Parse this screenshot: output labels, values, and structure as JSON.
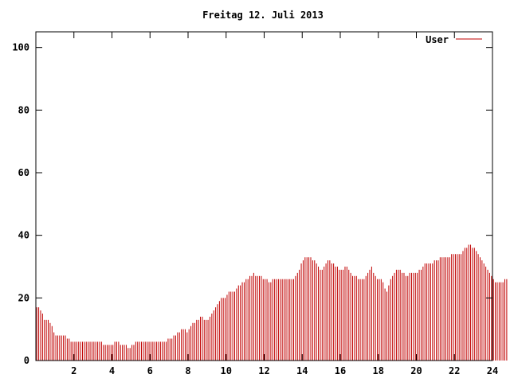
{
  "chart_data": {
    "type": "bar",
    "title": "Freitag 12. Juli 2013",
    "xlabel": "",
    "ylabel": "",
    "xlim": [
      0,
      24
    ],
    "ylim": [
      0,
      105
    ],
    "grid": false,
    "legend_position": "top-right",
    "x_ticks": [
      2,
      4,
      6,
      8,
      10,
      12,
      14,
      16,
      18,
      20,
      22,
      24
    ],
    "y_ticks": [
      0,
      20,
      40,
      60,
      80,
      100
    ],
    "bar_step_hours": 0.1,
    "series": [
      {
        "name": "User",
        "color": "#c00000",
        "values": [
          17,
          17,
          16,
          15,
          13,
          13,
          13,
          12,
          11,
          9,
          8,
          8,
          8,
          8,
          8,
          8,
          7,
          7,
          6,
          6,
          6,
          6,
          6,
          6,
          6,
          6,
          6,
          6,
          6,
          6,
          6,
          6,
          6,
          6,
          6,
          5,
          5,
          5,
          5,
          5,
          5,
          6,
          6,
          6,
          5,
          5,
          5,
          5,
          4,
          4,
          5,
          5,
          6,
          6,
          6,
          6,
          6,
          6,
          6,
          6,
          6,
          6,
          6,
          6,
          6,
          6,
          6,
          6,
          6,
          7,
          7,
          7,
          8,
          8,
          9,
          9,
          10,
          10,
          10,
          9,
          10,
          11,
          12,
          12,
          13,
          13,
          14,
          14,
          13,
          13,
          13,
          14,
          15,
          16,
          17,
          18,
          19,
          20,
          20,
          20,
          21,
          22,
          22,
          22,
          22,
          23,
          24,
          24,
          25,
          25,
          26,
          26,
          27,
          27,
          28,
          27,
          27,
          27,
          27,
          26,
          26,
          26,
          25,
          25,
          26,
          26,
          26,
          26,
          26,
          26,
          26,
          26,
          26,
          26,
          26,
          26,
          27,
          28,
          29,
          31,
          32,
          33,
          33,
          33,
          33,
          32,
          32,
          31,
          30,
          29,
          29,
          30,
          31,
          32,
          32,
          31,
          31,
          30,
          30,
          29,
          29,
          29,
          30,
          30,
          29,
          28,
          27,
          27,
          27,
          26,
          26,
          26,
          26,
          27,
          28,
          29,
          30,
          28,
          27,
          26,
          26,
          26,
          25,
          23,
          22,
          24,
          26,
          27,
          28,
          29,
          29,
          29,
          28,
          28,
          27,
          27,
          28,
          28,
          28,
          28,
          28,
          29,
          29,
          30,
          31,
          31,
          31,
          31,
          31,
          32,
          32,
          32,
          33,
          33,
          33,
          33,
          33,
          33,
          34,
          34,
          34,
          34,
          34,
          34,
          35,
          36,
          36,
          37,
          37,
          36,
          36,
          35,
          34,
          33,
          32,
          31,
          30,
          29,
          28,
          27,
          26,
          25,
          25,
          25,
          25,
          25,
          26,
          26
        ]
      }
    ]
  }
}
